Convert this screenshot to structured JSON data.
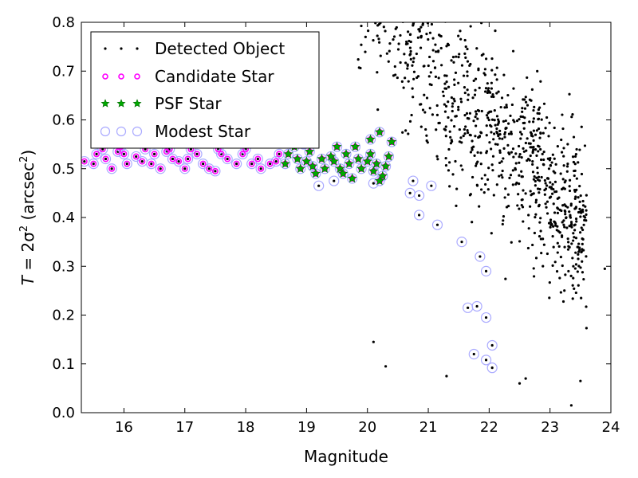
{
  "chart_data": {
    "type": "scatter",
    "xlabel": "Magnitude",
    "ylabel_parts": {
      "lhs": "T",
      "eq": " = 2σ",
      "sup1": "2",
      "unit": " (arcsec",
      "sup2": "2",
      "close": ")"
    },
    "xlim": [
      15.3,
      24.0
    ],
    "ylim": [
      0.0,
      0.8
    ],
    "xticks": [
      16,
      17,
      18,
      19,
      20,
      21,
      22,
      23,
      24
    ],
    "yticks": [
      0.0,
      0.1,
      0.2,
      0.3,
      0.4,
      0.5,
      0.6,
      0.7,
      0.8
    ],
    "legend_position": "top-left",
    "series": [
      {
        "name": "Detected Object",
        "marker": "dot",
        "color": "#000000"
      },
      {
        "name": "Candidate Star",
        "marker": "small-circle",
        "color": "#ff00ff"
      },
      {
        "name": "PSF Star",
        "marker": "star",
        "color": "#00aa00"
      },
      {
        "name": "Modest Star",
        "marker": "open-circle",
        "color": "#aaaaff"
      }
    ],
    "candidate_points": [
      [
        15.35,
        0.515
      ],
      [
        15.5,
        0.51
      ],
      [
        15.55,
        0.53
      ],
      [
        15.7,
        0.52
      ],
      [
        15.8,
        0.5
      ],
      [
        15.9,
        0.535
      ],
      [
        16.0,
        0.53
      ],
      [
        16.05,
        0.51
      ],
      [
        16.2,
        0.525
      ],
      [
        16.3,
        0.515
      ],
      [
        16.45,
        0.51
      ],
      [
        16.5,
        0.53
      ],
      [
        16.6,
        0.5
      ],
      [
        16.7,
        0.535
      ],
      [
        16.8,
        0.52
      ],
      [
        16.9,
        0.515
      ],
      [
        17.0,
        0.5
      ],
      [
        17.05,
        0.52
      ],
      [
        17.2,
        0.53
      ],
      [
        17.3,
        0.51
      ],
      [
        17.4,
        0.5
      ],
      [
        17.5,
        0.495
      ],
      [
        17.6,
        0.53
      ],
      [
        17.7,
        0.52
      ],
      [
        17.85,
        0.51
      ],
      [
        17.95,
        0.53
      ],
      [
        18.1,
        0.51
      ],
      [
        18.2,
        0.52
      ],
      [
        18.25,
        0.5
      ],
      [
        18.4,
        0.51
      ],
      [
        18.5,
        0.515
      ],
      [
        18.55,
        0.53
      ],
      [
        15.65,
        0.54
      ],
      [
        15.95,
        0.545
      ],
      [
        16.35,
        0.54
      ],
      [
        16.75,
        0.54
      ],
      [
        17.1,
        0.54
      ],
      [
        17.55,
        0.54
      ],
      [
        18.0,
        0.54
      ]
    ],
    "psf_points": [
      [
        18.65,
        0.51
      ],
      [
        18.7,
        0.53
      ],
      [
        18.8,
        0.545
      ],
      [
        18.85,
        0.52
      ],
      [
        18.9,
        0.5
      ],
      [
        19.0,
        0.515
      ],
      [
        19.05,
        0.535
      ],
      [
        19.1,
        0.505
      ],
      [
        19.15,
        0.49
      ],
      [
        19.25,
        0.52
      ],
      [
        19.3,
        0.5
      ],
      [
        19.4,
        0.525
      ],
      [
        19.45,
        0.515
      ],
      [
        19.55,
        0.5
      ],
      [
        19.6,
        0.49
      ],
      [
        19.65,
        0.53
      ],
      [
        19.7,
        0.51
      ],
      [
        19.8,
        0.545
      ],
      [
        19.85,
        0.52
      ],
      [
        19.9,
        0.5
      ],
      [
        20.0,
        0.515
      ],
      [
        20.05,
        0.53
      ],
      [
        20.1,
        0.495
      ],
      [
        20.15,
        0.51
      ],
      [
        20.2,
        0.575
      ],
      [
        20.25,
        0.485
      ],
      [
        20.3,
        0.505
      ],
      [
        20.35,
        0.525
      ],
      [
        20.4,
        0.555
      ],
      [
        20.05,
        0.56
      ],
      [
        19.5,
        0.545
      ],
      [
        18.95,
        0.55
      ],
      [
        19.75,
        0.48
      ],
      [
        20.2,
        0.475
      ]
    ],
    "modest_extra_points": [
      [
        19.2,
        0.465
      ],
      [
        19.45,
        0.475
      ],
      [
        20.1,
        0.47
      ],
      [
        20.7,
        0.45
      ],
      [
        20.75,
        0.475
      ],
      [
        20.85,
        0.445
      ],
      [
        20.85,
        0.405
      ],
      [
        21.05,
        0.465
      ],
      [
        21.15,
        0.385
      ],
      [
        21.55,
        0.35
      ],
      [
        21.85,
        0.32
      ],
      [
        21.95,
        0.29
      ],
      [
        21.65,
        0.215
      ],
      [
        21.8,
        0.218
      ],
      [
        21.95,
        0.195
      ],
      [
        21.75,
        0.12
      ],
      [
        21.95,
        0.108
      ],
      [
        22.05,
        0.138
      ],
      [
        22.05,
        0.092
      ]
    ],
    "detected_points_seed": 12345,
    "detected_points_count": 900
  }
}
